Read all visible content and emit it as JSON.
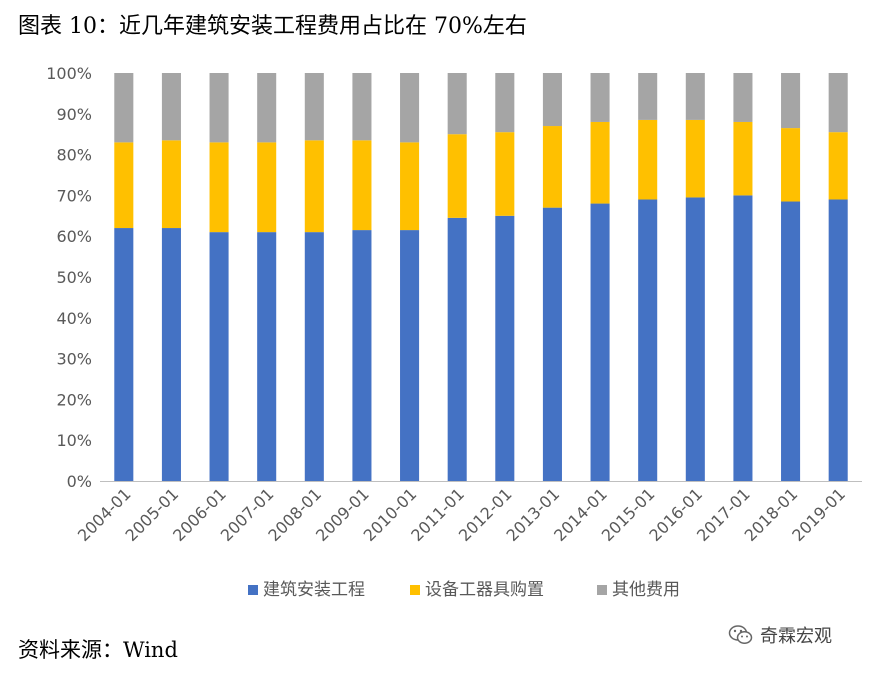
{
  "title": "图表 10：近几年建筑安装工程费用占比在 70%左右",
  "source": "资料来源：Wind",
  "watermark": {
    "text": "奇霖宏观",
    "icon": "wechat-icon"
  },
  "chart_data": {
    "type": "bar",
    "stacked": true,
    "categories": [
      "2004-01",
      "2005-01",
      "2006-01",
      "2007-01",
      "2008-01",
      "2009-01",
      "2010-01",
      "2011-01",
      "2012-01",
      "2013-01",
      "2014-01",
      "2015-01",
      "2016-01",
      "2017-01",
      "2018-01",
      "2019-01"
    ],
    "series": [
      {
        "name": "建筑安装工程",
        "color": "#4472C4",
        "values": [
          62,
          62,
          61,
          61,
          61,
          61.5,
          61.5,
          64.5,
          65,
          67,
          68,
          69,
          69.5,
          70,
          68.5,
          69
        ]
      },
      {
        "name": "设备工器具购置",
        "color": "#FFC000",
        "values": [
          21,
          21.5,
          22,
          22,
          22.5,
          22,
          21.5,
          20.5,
          20.5,
          20,
          20,
          19.5,
          19,
          18,
          18,
          16.5
        ]
      },
      {
        "name": "其他费用",
        "color": "#A5A5A5",
        "values": [
          17,
          16.5,
          17,
          17,
          16.5,
          16.5,
          17,
          15,
          14.5,
          13,
          12,
          11.5,
          11.5,
          12,
          13.5,
          14.5
        ]
      }
    ],
    "yticks": [
      "0%",
      "10%",
      "20%",
      "30%",
      "40%",
      "50%",
      "60%",
      "70%",
      "80%",
      "90%",
      "100%"
    ],
    "ylim": [
      0,
      100
    ],
    "grid": false,
    "legend_position": "bottom",
    "xlabel": "",
    "ylabel": ""
  }
}
